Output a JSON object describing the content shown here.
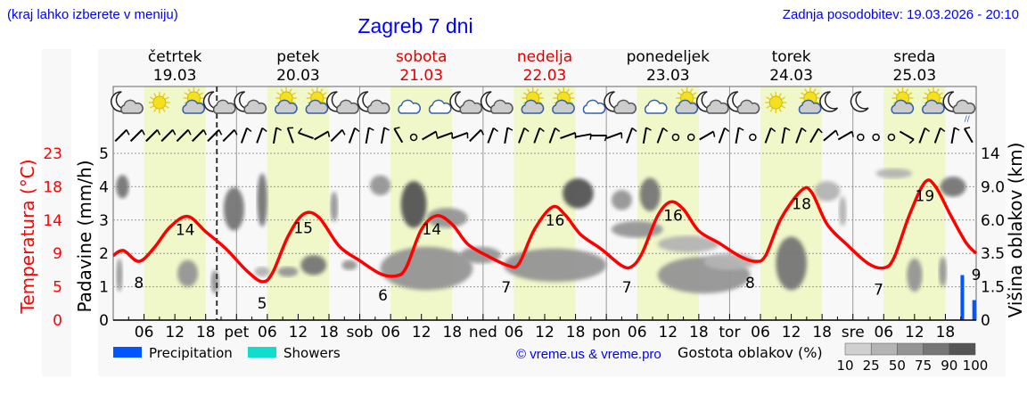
{
  "header": {
    "hint": "(kraj lahko izberete v meniju)",
    "title": "Zagreb 7 dni",
    "updated": "Zadnja posodobitev: 19.03.2026 - 20:10"
  },
  "days": [
    {
      "name": "četrtek",
      "date": "19.03",
      "weekend": false
    },
    {
      "name": "petek",
      "date": "20.03",
      "weekend": false
    },
    {
      "name": "sobota",
      "date": "21.03",
      "weekend": true
    },
    {
      "name": "nedelja",
      "date": "22.03",
      "weekend": true
    },
    {
      "name": "ponedeljek",
      "date": "23.03",
      "weekend": false
    },
    {
      "name": "torek",
      "date": "24.03",
      "weekend": false
    },
    {
      "name": "sreda",
      "date": "25.03",
      "weekend": false
    }
  ],
  "colors": {
    "temp": "#ff0000",
    "precip": "#0055ff",
    "showers": "#11ddcc",
    "day": "#f0f7c8",
    "weekend": "#dd0000",
    "link": "#0000ff"
  },
  "chart_data": {
    "type": "line",
    "title": "Zagreb 7 dni",
    "now_hour": 20.17,
    "xaxis": {
      "unit": "hours from 19.03 00:00",
      "range": [
        0,
        168
      ],
      "tick_labels": [
        "06",
        "12",
        "18",
        "pet",
        "06",
        "12",
        "18",
        "sob",
        "06",
        "12",
        "18",
        "ned",
        "06",
        "12",
        "18",
        "pon",
        "06",
        "12",
        "18",
        "tor",
        "06",
        "12",
        "18",
        "sre",
        "06",
        "12",
        "18"
      ]
    },
    "y_left_temp": {
      "label": "Temperatura (°C)",
      "ticks": [
        "0",
        "5",
        "9",
        "14",
        "18",
        "23"
      ],
      "range": [
        0,
        23
      ]
    },
    "y_left_precip": {
      "label": "Padavine (mm/h)",
      "ticks": [
        "0",
        "1",
        "2",
        "3",
        "4",
        "5"
      ],
      "range": [
        0,
        5
      ]
    },
    "y_right_cloud": {
      "label": "Višina oblakov (km)",
      "ticks": [
        "0",
        "1.5",
        "3.5",
        "6.0",
        "9.0",
        "14"
      ],
      "values": [
        0,
        1.5,
        3.5,
        6,
        9,
        14
      ]
    },
    "temperature": [
      [
        0,
        8.9
      ],
      [
        2,
        9.6
      ],
      [
        5,
        8.1
      ],
      [
        8,
        10
      ],
      [
        11,
        12.8
      ],
      [
        14.5,
        14.3
      ],
      [
        18,
        12.2
      ],
      [
        22,
        9.8
      ],
      [
        26,
        6.8
      ],
      [
        29,
        5.3
      ],
      [
        31,
        6.5
      ],
      [
        34,
        11.5
      ],
      [
        37,
        14.6
      ],
      [
        40,
        14.2
      ],
      [
        44,
        10.2
      ],
      [
        48,
        8.2
      ],
      [
        52,
        6.4
      ],
      [
        55,
        6.1
      ],
      [
        57,
        7.2
      ],
      [
        60,
        12.5
      ],
      [
        63,
        14.4
      ],
      [
        66,
        13.2
      ],
      [
        69,
        10.5
      ],
      [
        73,
        8.8
      ],
      [
        77,
        7.5
      ],
      [
        79,
        7.8
      ],
      [
        82,
        12.5
      ],
      [
        85.5,
        15.6
      ],
      [
        88,
        14.5
      ],
      [
        91,
        11.8
      ],
      [
        95,
        9.8
      ],
      [
        99,
        7.5
      ],
      [
        101,
        7.4
      ],
      [
        103,
        9.3
      ],
      [
        106,
        14.4
      ],
      [
        108.5,
        16.3
      ],
      [
        111,
        15.3
      ],
      [
        114,
        12.3
      ],
      [
        118,
        10.6
      ],
      [
        122,
        8.8
      ],
      [
        125,
        8.1
      ],
      [
        127,
        8.9
      ],
      [
        130,
        14
      ],
      [
        134,
        17.9
      ],
      [
        136,
        17.6
      ],
      [
        139,
        13.2
      ],
      [
        143,
        10.3
      ],
      [
        147,
        7.8
      ],
      [
        150,
        7.2
      ],
      [
        152,
        8.6
      ],
      [
        155,
        14.5
      ],
      [
        158,
        19
      ],
      [
        160,
        18.5
      ],
      [
        163,
        14.5
      ],
      [
        166,
        10.7
      ],
      [
        168,
        9.2
      ]
    ],
    "temp_labels": [
      [
        5,
        "8"
      ],
      [
        14,
        "14"
      ],
      [
        29,
        "5"
      ],
      [
        37,
        "15"
      ],
      [
        52.5,
        "6"
      ],
      [
        62,
        "14"
      ],
      [
        76.5,
        "7"
      ],
      [
        86,
        "16"
      ],
      [
        100,
        "7"
      ],
      [
        109,
        "16"
      ],
      [
        124,
        "8"
      ],
      [
        134,
        "18"
      ],
      [
        149,
        "7"
      ],
      [
        158,
        "19"
      ],
      [
        168,
        "9"
      ]
    ],
    "precipitation": [
      {
        "hour": 165.3,
        "mm": 1.35,
        "type": "Precipitation"
      },
      {
        "hour": 167.6,
        "mm": 0.6,
        "type": "Precipitation"
      }
    ],
    "cloud_density_legend": {
      "label": "Gostota oblakov (%)",
      "levels": [
        "10",
        "25",
        "50",
        "75",
        "90",
        "100"
      ],
      "colors": [
        "#d0d0d0",
        "#b4b4b4",
        "#959595",
        "#767676",
        "#555555"
      ]
    },
    "clouds": [
      {
        "hour": 1.8,
        "span": 2.5,
        "km": 9.0,
        "depth": 0.7,
        "density": 60
      },
      {
        "hour": 1.2,
        "span": 1.2,
        "km": 2.2,
        "depth": 1.0,
        "density": 40
      },
      {
        "hour": 14.5,
        "span": 4,
        "km": 2.3,
        "depth": 0.8,
        "density": 50
      },
      {
        "hour": 19.8,
        "span": 1.6,
        "km": 1.8,
        "depth": 0.7,
        "density": 40
      },
      {
        "hour": 23.5,
        "span": 4,
        "km": 7.0,
        "depth": 1.3,
        "density": 60
      },
      {
        "hour": 29,
        "span": 2,
        "km": 7.8,
        "depth": 1.6,
        "density": 60
      },
      {
        "hour": 29,
        "span": 3,
        "km": 2.4,
        "depth": 0.3,
        "density": 30
      },
      {
        "hour": 34,
        "span": 4,
        "km": 2.4,
        "depth": 0.3,
        "density": 40
      },
      {
        "hour": 39,
        "span": 5,
        "km": 2.8,
        "depth": 0.6,
        "density": 60
      },
      {
        "hour": 43,
        "span": 1.5,
        "km": 7.2,
        "depth": 0.9,
        "density": 40
      },
      {
        "hour": 46,
        "span": 3,
        "km": 2.8,
        "depth": 0.3,
        "density": 40
      },
      {
        "hour": 52,
        "span": 4,
        "km": 9.2,
        "depth": 0.6,
        "density": 50
      },
      {
        "hour": 58.5,
        "span": 5,
        "km": 7.4,
        "depth": 1.4,
        "density": 90
      },
      {
        "hour": 65,
        "span": 8,
        "km": 6.2,
        "depth": 0.6,
        "density": 50
      },
      {
        "hour": 61,
        "span": 18,
        "km": 2.6,
        "depth": 1.3,
        "density": 50
      },
      {
        "hour": 71.5,
        "span": 8,
        "km": 3.4,
        "depth": 0.5,
        "density": 40
      },
      {
        "hour": 90.5,
        "span": 6,
        "km": 8.4,
        "depth": 0.9,
        "density": 80
      },
      {
        "hour": 86,
        "span": 20,
        "km": 2.8,
        "depth": 1.0,
        "density": 50
      },
      {
        "hour": 99,
        "span": 4,
        "km": 7.8,
        "depth": 0.6,
        "density": 50
      },
      {
        "hour": 104.5,
        "span": 4,
        "km": 8.3,
        "depth": 1.0,
        "density": 60
      },
      {
        "hour": 102,
        "span": 10,
        "km": 5.3,
        "depth": 0.5,
        "density": 40
      },
      {
        "hour": 115,
        "span": 18,
        "km": 2.2,
        "depth": 1.1,
        "density": 40
      },
      {
        "hour": 112,
        "span": 12,
        "km": 4.2,
        "depth": 0.5,
        "density": 30
      },
      {
        "hour": 120,
        "span": 10,
        "km": 3.0,
        "depth": 0.5,
        "density": 30
      },
      {
        "hour": 132,
        "span": 6,
        "km": 2.9,
        "depth": 1.6,
        "density": 70
      },
      {
        "hour": 139,
        "span": 5,
        "km": 8.6,
        "depth": 0.6,
        "density": 20
      },
      {
        "hour": 142,
        "span": 1.5,
        "km": 6.8,
        "depth": 0.9,
        "density": 30
      },
      {
        "hour": 152,
        "span": 7,
        "km": 11.0,
        "depth": 0.3,
        "density": 20
      },
      {
        "hour": 163.5,
        "span": 5,
        "km": 9.0,
        "depth": 0.6,
        "density": 70
      },
      {
        "hour": 156,
        "span": 3,
        "km": 2.2,
        "depth": 1.0,
        "density": 40
      },
      {
        "hour": 161.5,
        "span": 1.5,
        "km": 2.4,
        "depth": 0.9,
        "density": 40
      }
    ]
  },
  "weather_icons": [
    "moon-cloud",
    "sun",
    "sun-cloud",
    "moon-cloud",
    "moon-cloud",
    "sun-cloud",
    "sun-cloud",
    "moon-cloud",
    "moon-cloud",
    "cloud",
    "cloud",
    "moon-cloud",
    "moon-cloud",
    "sun-cloud",
    "sun-cloud",
    "cloud",
    "moon-cloud",
    "cloud",
    "sun-cloud",
    "moon-cloud",
    "moon-cloud",
    "sun",
    "sun-cloud",
    "moon",
    "moon",
    "sun-cloud-rain",
    "sun-cloud-rain",
    "moon-cloud-rain"
  ],
  "wind_directions": [
    225,
    225,
    225,
    225,
    225,
    225,
    225,
    225,
    200,
    200,
    190,
    160,
    110,
    240,
    225,
    200,
    190,
    190,
    150,
    -1,
    240,
    250,
    250,
    225,
    200,
    190,
    200,
    200,
    200,
    250,
    260,
    270,
    250,
    200,
    190,
    200,
    -1,
    -1,
    240,
    200,
    190,
    -1,
    200,
    190,
    200,
    210,
    230,
    240,
    -1,
    -1,
    -1,
    300,
    200,
    200,
    190,
    150
  ],
  "legend": {
    "precipitation": "Precipitation",
    "showers": "Showers"
  },
  "copyright": "© vreme.us & vreme.pro"
}
